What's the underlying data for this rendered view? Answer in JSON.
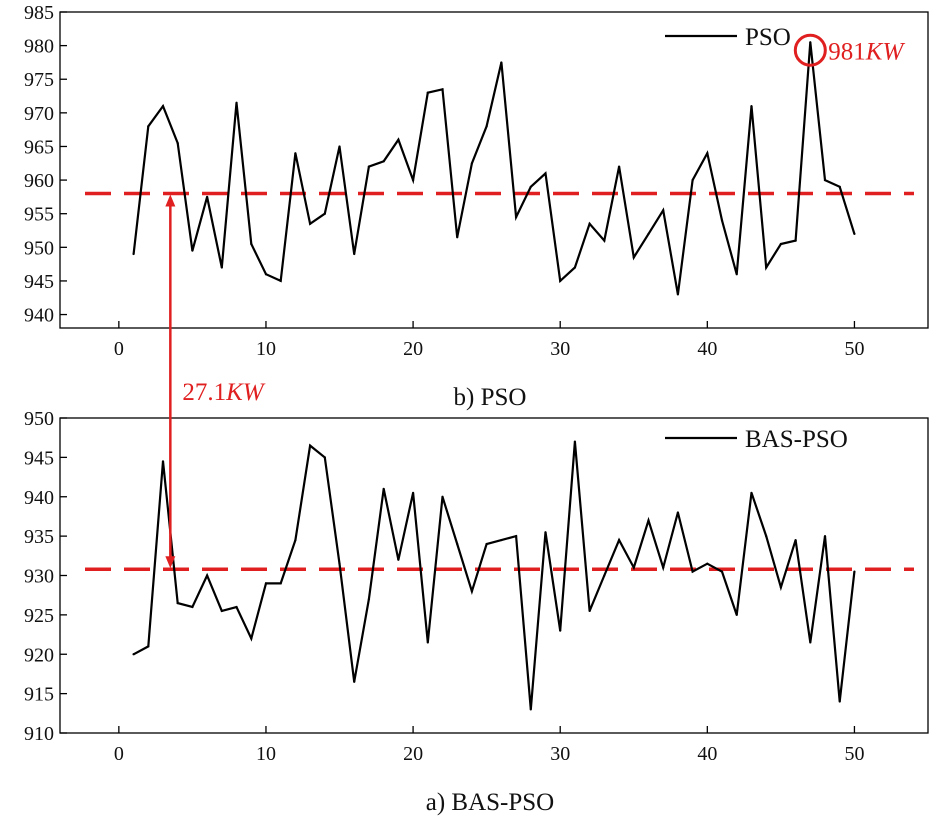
{
  "chart_data": [
    {
      "type": "line",
      "caption": "b) PSO",
      "legend": "PSO",
      "xlim": [
        -4,
        55
      ],
      "ylim": [
        938,
        985
      ],
      "xticks": [
        0,
        10,
        20,
        30,
        40,
        50
      ],
      "yticks": [
        940,
        945,
        950,
        955,
        960,
        965,
        970,
        975,
        980,
        985
      ],
      "x": [
        1,
        2,
        3,
        4,
        5,
        6,
        7,
        8,
        9,
        10,
        11,
        12,
        13,
        14,
        15,
        16,
        17,
        18,
        19,
        20,
        21,
        22,
        23,
        24,
        25,
        26,
        27,
        28,
        29,
        30,
        31,
        32,
        33,
        34,
        35,
        36,
        37,
        38,
        39,
        40,
        41,
        42,
        43,
        44,
        45,
        46,
        47,
        48,
        49,
        50
      ],
      "y": [
        949,
        968,
        971,
        965.5,
        949.5,
        957.5,
        947,
        971.5,
        950.5,
        946,
        945,
        964,
        953.5,
        955,
        965,
        949,
        962,
        962.8,
        966,
        960,
        973,
        973.5,
        951.5,
        962.5,
        968,
        977.5,
        954.5,
        959,
        961,
        945,
        947,
        953.5,
        951,
        962,
        948.5,
        952,
        955.5,
        943,
        960,
        964,
        954,
        946,
        971,
        947,
        950.5,
        951,
        980.5,
        960,
        959,
        952
      ],
      "reference_line": 958,
      "peak_label": {
        "value_text": "981",
        "unit_text": "KW",
        "x": 47,
        "y": 980.5
      },
      "series_color": "#000000",
      "annotation_color": "#e02020"
    },
    {
      "type": "line",
      "caption": "a) BAS-PSO",
      "legend": "BAS-PSO",
      "xlim": [
        -4,
        55
      ],
      "ylim": [
        910,
        950
      ],
      "xticks": [
        0,
        10,
        20,
        30,
        40,
        50
      ],
      "yticks": [
        910,
        915,
        920,
        925,
        930,
        935,
        940,
        945,
        950
      ],
      "x": [
        1,
        2,
        3,
        4,
        5,
        6,
        7,
        8,
        9,
        10,
        11,
        12,
        13,
        14,
        15,
        16,
        17,
        18,
        19,
        20,
        21,
        22,
        23,
        24,
        25,
        26,
        27,
        28,
        29,
        30,
        31,
        32,
        33,
        34,
        35,
        36,
        37,
        38,
        39,
        40,
        41,
        42,
        43,
        44,
        45,
        46,
        47,
        48,
        49,
        50
      ],
      "y": [
        920,
        921,
        944.5,
        926.5,
        926,
        930,
        925.5,
        926,
        922,
        929,
        929,
        934.5,
        946.5,
        945,
        931.5,
        916.5,
        927,
        941,
        932,
        940.5,
        921.5,
        940,
        934,
        928,
        934,
        934.5,
        935,
        913,
        935.5,
        923,
        947,
        925.5,
        930,
        934.5,
        931,
        937,
        931,
        938,
        930.5,
        931.5,
        930.5,
        925,
        940.5,
        935,
        928.5,
        934.5,
        921.5,
        935,
        914,
        930.5
      ],
      "reference_line": 930.8,
      "series_color": "#000000",
      "annotation_color": "#e02020"
    }
  ],
  "gap_annotation": {
    "value_text": "27.1",
    "unit_text": "KW"
  }
}
